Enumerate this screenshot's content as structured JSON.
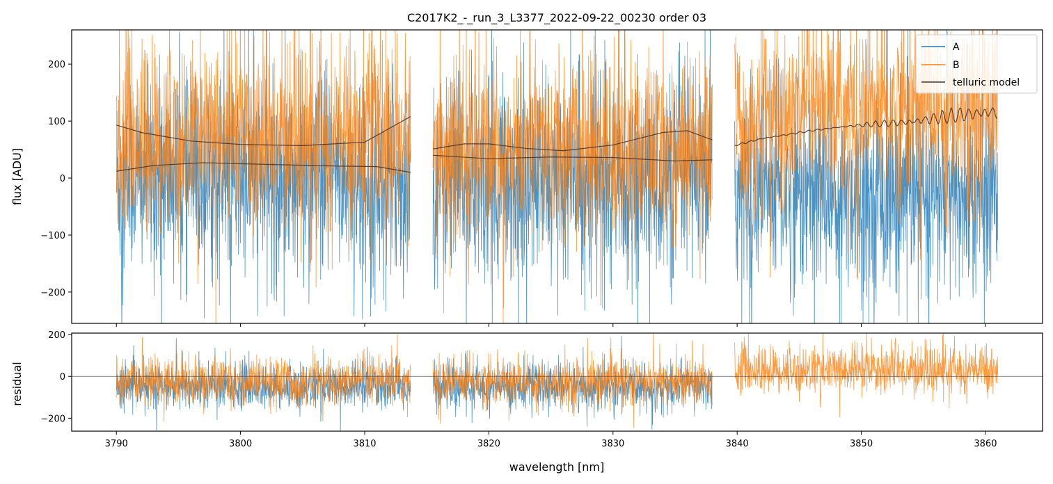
{
  "chart_data": {
    "title": "C2017K2_-_run_3_L3377_2022-09-22_00230  order 03",
    "type": "line",
    "colors": {
      "A": "#1f77b4",
      "B": "#ff7f0e",
      "model": "#4a3428"
    },
    "segments": [
      [
        3790.0,
        3813.7
      ],
      [
        3815.5,
        3838.0
      ],
      [
        3839.8,
        3861.0
      ]
    ],
    "top": {
      "xlabel": "",
      "ylabel": "flux [ADU]",
      "xlim": [
        3786.4,
        3864.6
      ],
      "ylim": [
        -255,
        260
      ],
      "yticks": [
        200,
        100,
        0,
        -100,
        -200
      ],
      "ytick_labels": [
        "200",
        "100",
        "0",
        "−100",
        "−200"
      ],
      "series": [
        {
          "name": "A",
          "legend_label": "A",
          "noise": 85,
          "median": [
            [
              3790,
              0
            ],
            [
              3813.7,
              0
            ],
            [
              3815.5,
              -5
            ],
            [
              3838,
              -5
            ],
            [
              3839.8,
              -20
            ],
            [
              3861,
              -40
            ]
          ]
        },
        {
          "name": "B",
          "legend_label": "B",
          "noise": 80,
          "median": [
            [
              3790,
              70
            ],
            [
              3813.7,
              75
            ],
            [
              3815.5,
              55
            ],
            [
              3838,
              50
            ],
            [
              3839.8,
              95
            ],
            [
              3861,
              140
            ]
          ]
        }
      ],
      "model_label": "telluric model",
      "models": [
        [
          [
            3790.0,
            93
          ],
          [
            3792,
            80
          ],
          [
            3796,
            65
          ],
          [
            3800,
            59
          ],
          [
            3805,
            57
          ],
          [
            3810,
            63
          ],
          [
            3813.7,
            108
          ]
        ],
        [
          [
            3790.0,
            12
          ],
          [
            3793,
            22
          ],
          [
            3797,
            27
          ],
          [
            3802,
            24
          ],
          [
            3808,
            21
          ],
          [
            3811,
            20
          ],
          [
            3813.7,
            10
          ]
        ],
        [
          [
            3815.5,
            51
          ],
          [
            3818,
            60
          ],
          [
            3820,
            60
          ],
          [
            3823,
            52
          ],
          [
            3826,
            48
          ],
          [
            3830,
            58
          ],
          [
            3834,
            80
          ],
          [
            3836,
            83
          ],
          [
            3838,
            67
          ]
        ],
        [
          [
            3815.5,
            40
          ],
          [
            3820,
            34
          ],
          [
            3825,
            37
          ],
          [
            3830,
            36
          ],
          [
            3835,
            30
          ],
          [
            3838,
            32
          ]
        ],
        [
          [
            3839.8,
            58
          ],
          [
            3842,
            70
          ],
          [
            3846,
            84
          ],
          [
            3850,
            95
          ],
          [
            3854,
            103
          ],
          [
            3858,
            118
          ],
          [
            3861,
            125
          ]
        ]
      ],
      "legend_position": "upper right"
    },
    "bottom": {
      "xlabel": "wavelength [nm]",
      "ylabel": "residual",
      "xlim": [
        3786.4,
        3864.6
      ],
      "ylim": [
        -262,
        207
      ],
      "yticks": [
        200,
        0,
        -200
      ],
      "ytick_labels": [
        "200",
        "0",
        "−200"
      ],
      "zero_line": 0,
      "series": [
        {
          "name": "A",
          "median": -50,
          "noise": 52
        },
        {
          "name": "B",
          "median": -25,
          "noise": 55
        }
      ]
    },
    "xticks": [
      3790,
      3800,
      3810,
      3820,
      3830,
      3840,
      3850,
      3860
    ],
    "xtick_labels": [
      "3790",
      "3800",
      "3810",
      "3820",
      "3830",
      "3840",
      "3850",
      "3860"
    ]
  }
}
